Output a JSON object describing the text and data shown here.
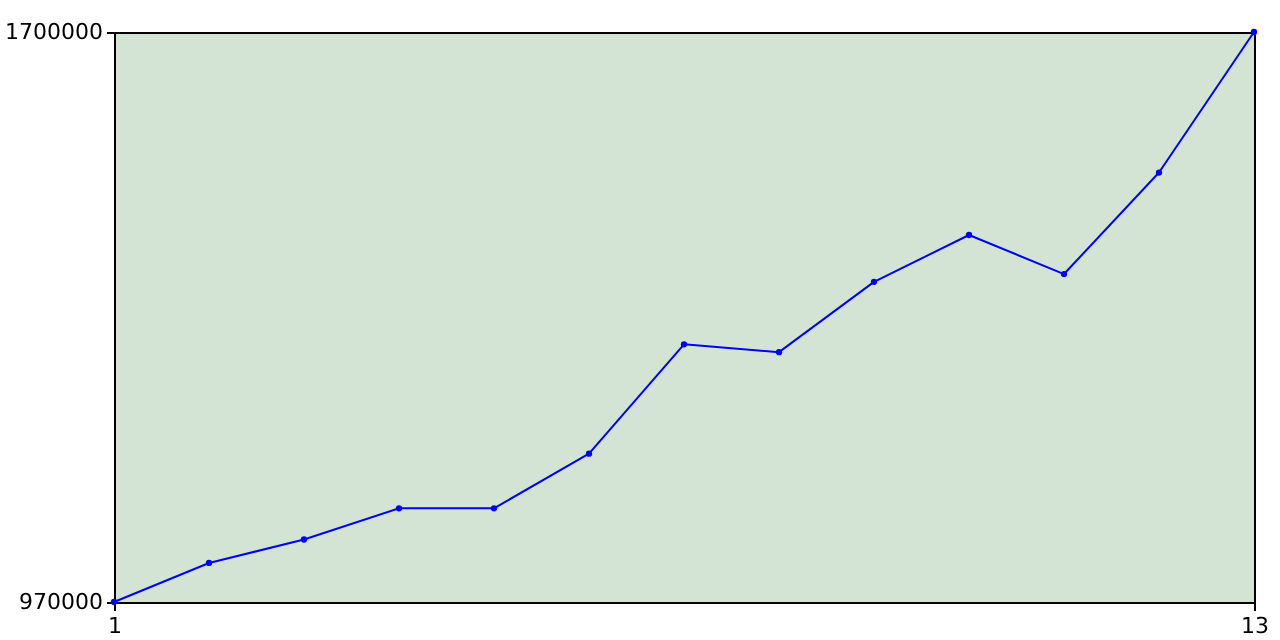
{
  "chart_data": {
    "type": "line",
    "x": [
      1,
      2,
      3,
      4,
      5,
      6,
      7,
      8,
      9,
      10,
      11,
      12,
      13
    ],
    "series": [
      {
        "color": "#0000ff",
        "values": [
          970000,
          1020000,
          1050000,
          1090000,
          1090000,
          1160000,
          1300000,
          1290000,
          1380000,
          1440000,
          1390000,
          1520000,
          1700000
        ]
      }
    ],
    "xlim": [
      1,
      13
    ],
    "xticks": [
      1,
      13
    ],
    "ylim": [
      970000,
      1700000
    ],
    "yticks": [
      970000,
      1700000
    ],
    "grid": false,
    "marker": "circle",
    "line_style": "solid"
  }
}
